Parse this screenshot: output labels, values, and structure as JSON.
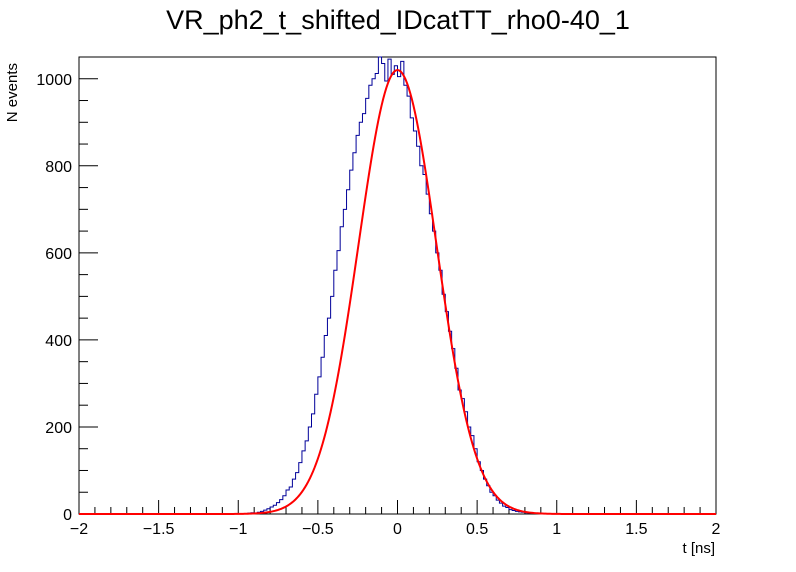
{
  "chart_data": {
    "type": "bar",
    "title": "VR_ph2_t_shifted_IDcatTT_rho0-40_1",
    "xlabel": "t [ns]",
    "ylabel": "N events",
    "xlim": [
      -2,
      2
    ],
    "ylim": [
      0,
      1050
    ],
    "x_ticks": [
      -2,
      -1.5,
      -1,
      -0.5,
      0,
      0.5,
      1,
      1.5,
      2
    ],
    "x_tick_labels": [
      "−2",
      "−1.5",
      "−1",
      "−0.5",
      "0",
      "0.5",
      "1",
      "1.5",
      "2"
    ],
    "y_ticks": [
      0,
      200,
      400,
      600,
      800,
      1000
    ],
    "y_tick_labels": [
      "0",
      "200",
      "400",
      "600",
      "800",
      "1000"
    ],
    "grid": false,
    "legend": "none",
    "series": [
      {
        "type": "step",
        "color": "#000099",
        "bin_width": 0.02,
        "x": [
          -0.93,
          -0.91,
          -0.89,
          -0.87,
          -0.85,
          -0.83,
          -0.81,
          -0.79,
          -0.77,
          -0.75,
          -0.73,
          -0.71,
          -0.69,
          -0.67,
          -0.65,
          -0.63,
          -0.61,
          -0.59,
          -0.57,
          -0.55,
          -0.53,
          -0.51,
          -0.49,
          -0.47,
          -0.45,
          -0.43,
          -0.41,
          -0.39,
          -0.37,
          -0.35,
          -0.33,
          -0.31,
          -0.29,
          -0.27,
          -0.25,
          -0.23,
          -0.21,
          -0.19,
          -0.17,
          -0.15,
          -0.13,
          -0.11,
          -0.09,
          -0.07,
          -0.05,
          -0.03,
          -0.01,
          0.01,
          0.03,
          0.05,
          0.07,
          0.09,
          0.11,
          0.13,
          0.15,
          0.17,
          0.19,
          0.21,
          0.23,
          0.25,
          0.27,
          0.29,
          0.31,
          0.33,
          0.35,
          0.37,
          0.39,
          0.41,
          0.43,
          0.45,
          0.47,
          0.49,
          0.51,
          0.53,
          0.55,
          0.57,
          0.59,
          0.61,
          0.63,
          0.65,
          0.67,
          0.69,
          0.71,
          0.73,
          0.75,
          0.77,
          0.79,
          0.81,
          0.83,
          0.85,
          0.87,
          0.89,
          0.91,
          0.93
        ],
        "values": [
          2,
          3,
          2,
          4,
          6,
          9,
          12,
          16,
          20,
          26,
          33,
          42,
          55,
          62,
          80,
          95,
          118,
          145,
          168,
          200,
          230,
          275,
          315,
          360,
          410,
          450,
          500,
          560,
          605,
          660,
          700,
          745,
          790,
          830,
          870,
          900,
          920,
          955,
          985,
          1000,
          1012,
          1050,
          1035,
          995,
          1045,
          1010,
          1030,
          1005,
          1040,
          985,
          960,
          910,
          880,
          845,
          800,
          780,
          735,
          690,
          650,
          600,
          560,
          505,
          465,
          420,
          380,
          335,
          285,
          265,
          235,
          200,
          180,
          150,
          120,
          100,
          80,
          65,
          50,
          42,
          32,
          25,
          18,
          15,
          10,
          8,
          6,
          5,
          4,
          3,
          2,
          2,
          1,
          1,
          1,
          0
        ]
      },
      {
        "type": "gaussian_fit",
        "color": "#ff0000",
        "amplitude": 1020,
        "mean": 0.0,
        "sigma": 0.245
      }
    ]
  }
}
